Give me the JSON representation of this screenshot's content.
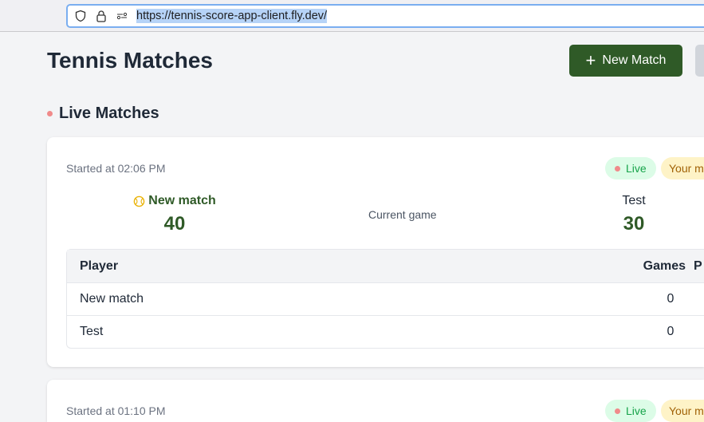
{
  "browser": {
    "url": "https://tennis-score-app-client.fly.dev/"
  },
  "header": {
    "title": "Tennis Matches",
    "new_match_label": "New Match"
  },
  "section": {
    "title": "Live Matches"
  },
  "matches": [
    {
      "started": "Started at 02:06 PM",
      "live_badge": "Live",
      "your_badge": "Your m",
      "player1": "New match",
      "score1": "40",
      "player2": "Test",
      "score2": "30",
      "current_game": "Current game",
      "table": {
        "headers": [
          "Player",
          "Games",
          "P"
        ],
        "rows": [
          {
            "player": "New match",
            "games": "0"
          },
          {
            "player": "Test",
            "games": "0"
          }
        ]
      }
    },
    {
      "started": "Started at 01:10 PM",
      "live_badge": "Live",
      "your_badge": "Your m"
    }
  ],
  "colors": {
    "primary": "#2f5a27",
    "live_bg": "#dcfce7",
    "live_text": "#16a34a",
    "your_bg": "#fef3c7",
    "live_dot": "#f08a8a"
  }
}
